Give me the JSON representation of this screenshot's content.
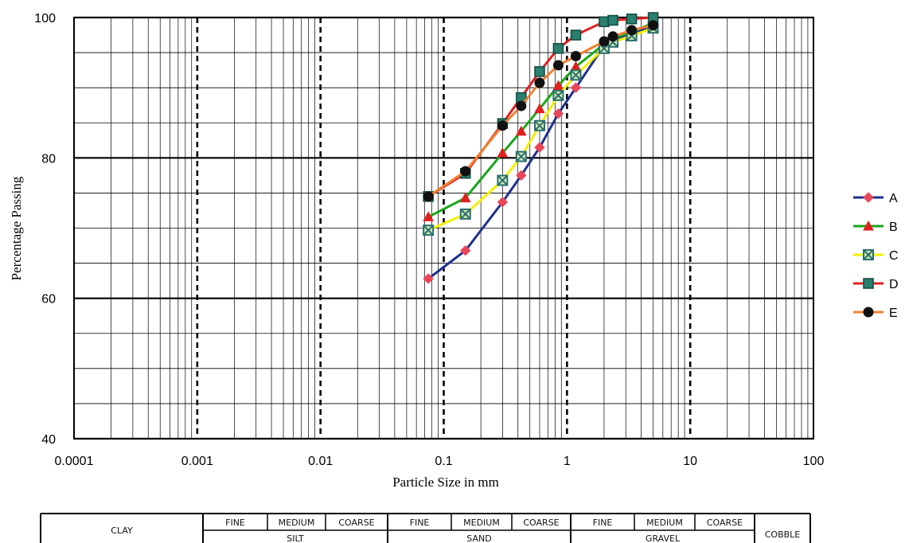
{
  "chart_data": {
    "type": "line",
    "xscale": "log",
    "xlabel": "Particle Size in mm",
    "ylabel": "Percentage Passing",
    "xlim": [
      0.0001,
      100
    ],
    "ylim": [
      40,
      100
    ],
    "xticks": [
      "0.0001",
      "0.001",
      "0.01",
      "0.1",
      "1",
      "10",
      "100"
    ],
    "yticks": [
      "40",
      "60",
      "80",
      "100"
    ],
    "grid": true,
    "legend_position": "right",
    "series": [
      {
        "name": "A",
        "color": "#1f2f8f",
        "marker": "diamond",
        "marker_color": "#e8475a",
        "x": [
          0.075,
          0.15,
          0.3,
          0.425,
          0.6,
          0.85,
          1.18,
          2.0,
          2.36,
          3.35,
          5.0
        ],
        "y": [
          62.8,
          66.8,
          73.7,
          77.5,
          81.5,
          86.3,
          90.0,
          96.0,
          96.8,
          97.5,
          99.0
        ]
      },
      {
        "name": "B",
        "color": "#19a619",
        "marker": "triangle",
        "marker_color": "#e02020",
        "x": [
          0.075,
          0.15,
          0.3,
          0.425,
          0.6,
          0.85,
          1.18,
          2.0,
          2.36,
          3.35,
          5.0
        ],
        "y": [
          71.6,
          74.3,
          80.7,
          83.8,
          87.0,
          90.3,
          93.0,
          96.2,
          97.0,
          98.0,
          99.2
        ]
      },
      {
        "name": "C",
        "color": "#f0f000",
        "marker": "boxed-x",
        "marker_color": "#2a6f6f",
        "x": [
          0.075,
          0.15,
          0.3,
          0.425,
          0.6,
          0.85,
          1.18,
          2.0,
          2.36,
          3.35,
          5.0
        ],
        "y": [
          69.7,
          72.0,
          76.8,
          80.2,
          84.6,
          88.9,
          91.8,
          95.6,
          96.5,
          97.4,
          98.5
        ]
      },
      {
        "name": "D",
        "color": "#e02020",
        "marker": "square",
        "marker_color": "#2a7f6f",
        "x": [
          0.075,
          0.15,
          0.3,
          0.425,
          0.6,
          0.85,
          1.18,
          2.0,
          2.36,
          3.35,
          5.0
        ],
        "y": [
          74.5,
          77.8,
          84.9,
          88.6,
          92.3,
          95.6,
          97.5,
          99.4,
          99.6,
          99.8,
          100.0
        ]
      },
      {
        "name": "E",
        "color": "#f08030",
        "marker": "circle",
        "marker_color": "#111111",
        "x": [
          0.075,
          0.15,
          0.3,
          0.425,
          0.6,
          0.85,
          1.18,
          2.0,
          2.36,
          3.35,
          5.0
        ],
        "y": [
          74.5,
          78.1,
          84.6,
          87.4,
          90.7,
          93.2,
          94.5,
          96.6,
          97.3,
          98.2,
          98.9
        ]
      }
    ]
  },
  "classification": {
    "clay": "CLAY",
    "silt": {
      "label": "SILT",
      "subs": [
        "FINE",
        "MEDIUM",
        "COARSE"
      ]
    },
    "sand": {
      "label": "SAND",
      "subs": [
        "FINE",
        "MEDIUM",
        "COARSE"
      ]
    },
    "gravel": {
      "label": "GRAVEL",
      "subs": [
        "FINE",
        "MEDIUM",
        "COARSE"
      ]
    },
    "cobble": "COBBLE"
  }
}
